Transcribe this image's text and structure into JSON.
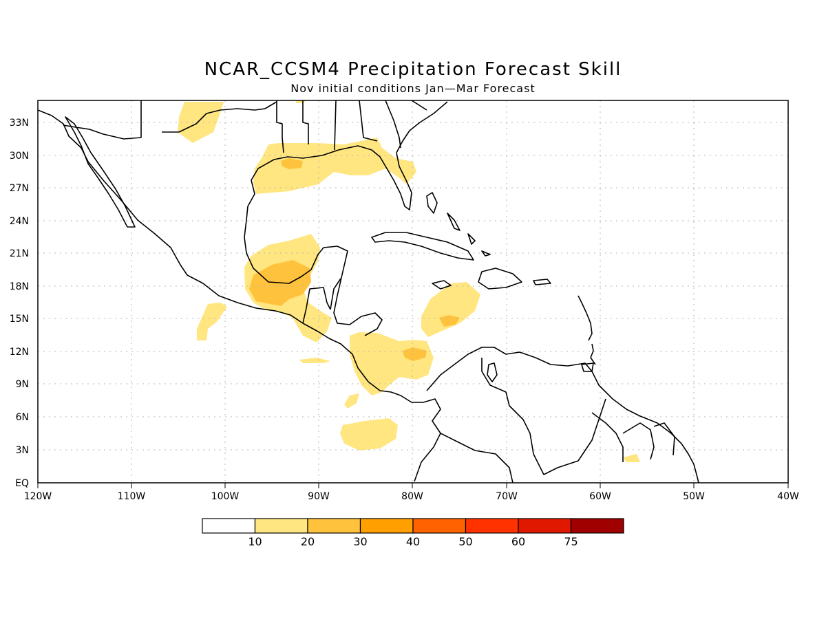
{
  "title": "NCAR_CCSM4 Precipitation Forecast Skill",
  "subtitle": "Nov initial conditions   Jan—Mar Forecast",
  "map": {
    "lon_ticks": [
      "120W",
      "110W",
      "100W",
      "90W",
      "80W",
      "70W",
      "60W",
      "50W",
      "40W"
    ],
    "lat_ticks": [
      "33N",
      "30N",
      "27N",
      "24N",
      "21N",
      "18N",
      "15N",
      "12N",
      "9N",
      "6N",
      "3N",
      "EQ"
    ],
    "grid": "dotted",
    "region": "Central America, Caribbean and northern South America"
  },
  "colorbar": {
    "colors": [
      "#ffffff",
      "#ffe680",
      "#ffc23c",
      "#ffa000",
      "#ff6200",
      "#ff3200",
      "#e11800",
      "#a00000"
    ],
    "labels": [
      "10",
      "20",
      "30",
      "40",
      "50",
      "60",
      "75"
    ]
  },
  "skill_regions": [
    {
      "name": "Southern Mexico / Gulf of Campeche",
      "level": "20-30"
    },
    {
      "name": "Northern Gulf of Mexico coast",
      "level": "20-30"
    },
    {
      "name": "Caribbean south of Hispaniola",
      "level": "20-30"
    },
    {
      "name": "Southwestern Caribbean",
      "level": "20-30"
    },
    {
      "name": "Eastern Pacific near Costa Rica",
      "level": "10-20"
    },
    {
      "name": "Northern Mexico",
      "level": "10-20"
    },
    {
      "name": "Florida",
      "level": "10-20"
    }
  ]
}
